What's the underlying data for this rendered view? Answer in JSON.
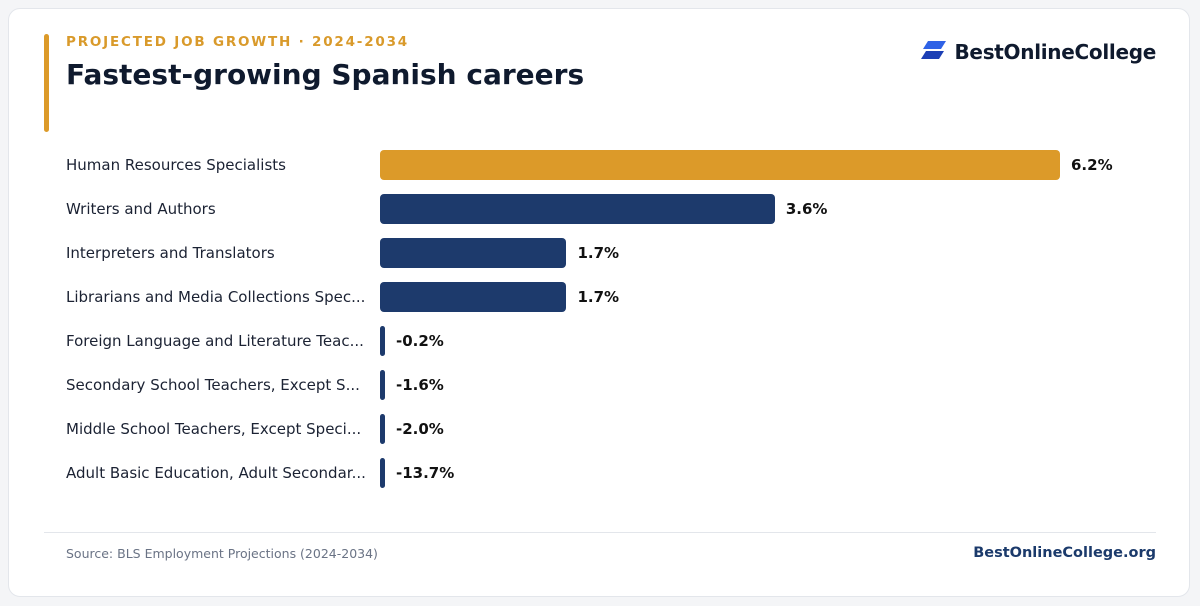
{
  "header": {
    "eyebrow": "PROJECTED JOB GROWTH · 2024-2034",
    "title": "Fastest-growing Spanish careers"
  },
  "brand": {
    "logo_icon": "bestonlinecollege-logo-icon",
    "name": "BestOnlineCollege"
  },
  "colors": {
    "highlight": "#dc9a29",
    "bar": "#1d3a6c",
    "accent_rule": "#dc9a29"
  },
  "chart_data": {
    "type": "bar",
    "orientation": "horizontal",
    "categories": [
      "Human Resources Specialists",
      "Writers and Authors",
      "Interpreters and Translators",
      "Librarians and Media Collections Spec...",
      "Foreign Language and Literature Teac...",
      "Secondary School Teachers, Except S...",
      "Middle School Teachers, Except Speci...",
      "Adult Basic Education, Adult Secondar..."
    ],
    "values": [
      6.2,
      3.6,
      1.7,
      1.7,
      -0.2,
      -1.6,
      -2.0,
      -13.7
    ],
    "value_labels": [
      "6.2%",
      "3.6%",
      "1.7%",
      "1.7%",
      "-0.2%",
      "-1.6%",
      "-2.0%",
      "-13.7%"
    ],
    "highlighted_index": 0,
    "xlim": [
      0,
      6.2
    ],
    "grid": false,
    "legend": "none"
  },
  "footer": {
    "source": "Source: BLS Employment Projections (2024-2034)",
    "brand_url": "BestOnlineCollege.org"
  }
}
